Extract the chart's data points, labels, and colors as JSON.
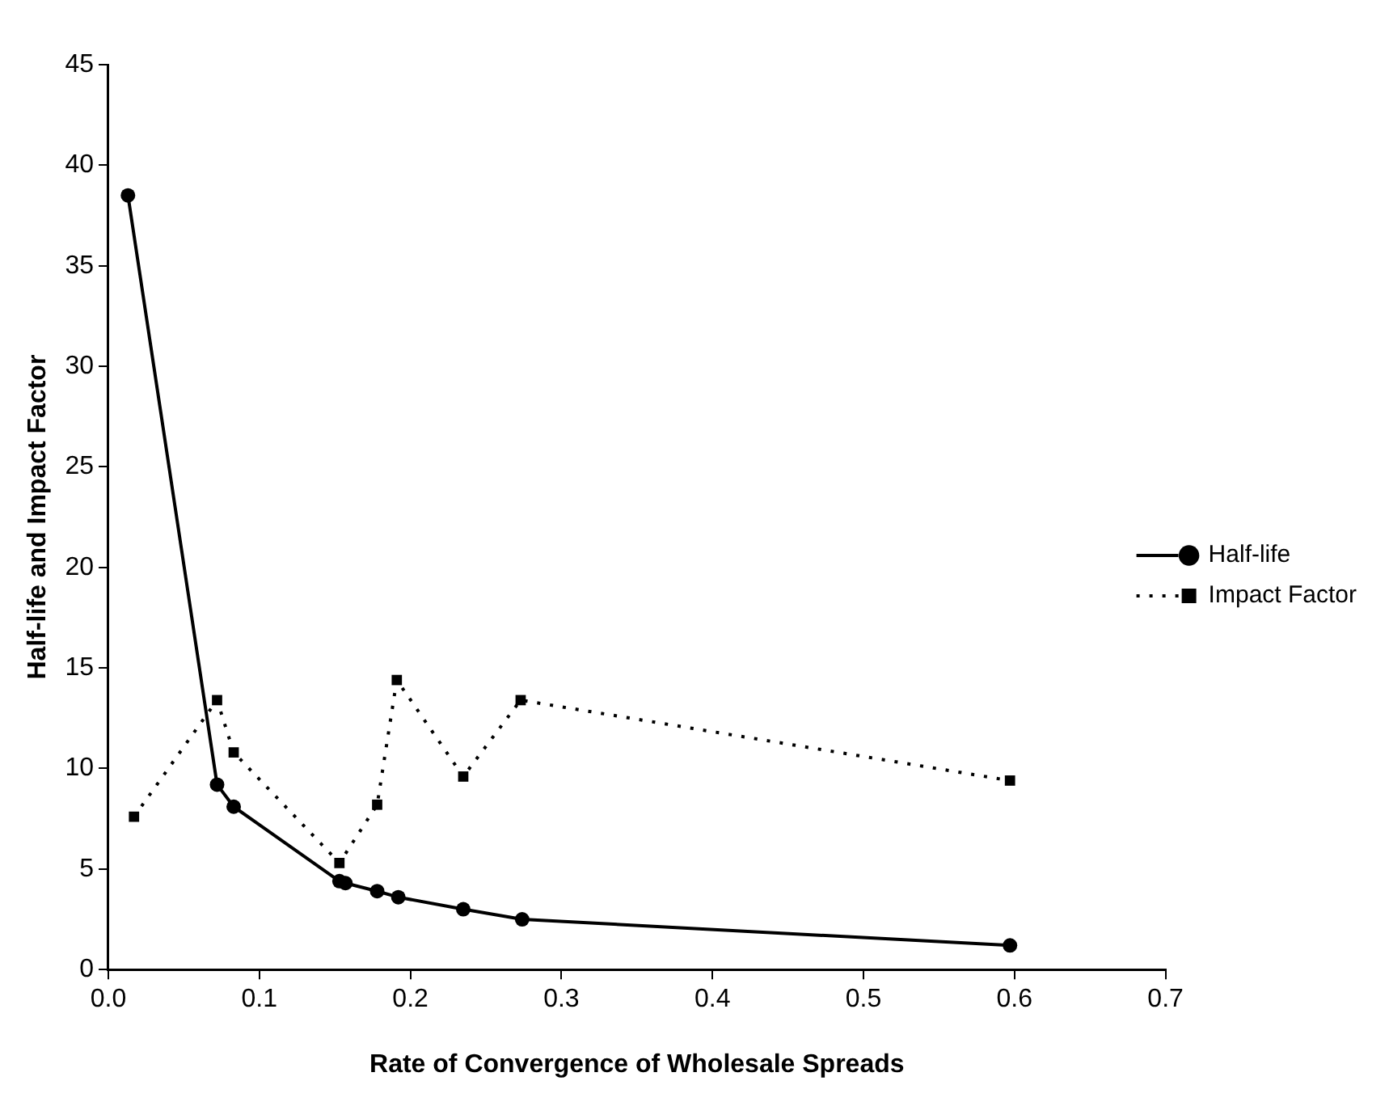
{
  "chart_data": {
    "type": "line",
    "xlabel": "Rate of Convergence of Wholesale Spreads",
    "ylabel": "Half-life and Impact Factor",
    "xlim": [
      0,
      0.7
    ],
    "xticks": [
      {
        "value": 0,
        "label": "0.0"
      },
      0.1,
      0.2,
      0.3,
      0.4,
      0.5,
      0.6,
      0.7
    ],
    "ylim": [
      0,
      45
    ],
    "yticks": [
      0,
      5,
      10,
      15,
      20,
      25,
      30,
      35,
      40,
      45
    ],
    "grid": false,
    "legend": "right",
    "series": [
      {
        "name": "Half-life",
        "color": "#000000",
        "marker": "circle",
        "line_style": "solid",
        "x": [
          0.013,
          0.072,
          0.083,
          0.153,
          0.157,
          0.178,
          0.192,
          0.235,
          0.274,
          0.597
        ],
        "values": [
          38.5,
          9.2,
          8.1,
          4.4,
          4.3,
          3.9,
          3.6,
          3.0,
          2.5,
          1.2
        ]
      },
      {
        "name": "Impact Factor",
        "color": "#000000",
        "marker": "square",
        "line_style": "dotted",
        "x": [
          0.017,
          0.072,
          0.083,
          0.153,
          0.178,
          0.191,
          0.235,
          0.273,
          0.597
        ],
        "values": [
          7.6,
          13.4,
          10.8,
          5.3,
          8.2,
          14.4,
          9.6,
          13.4,
          9.4
        ]
      }
    ]
  }
}
